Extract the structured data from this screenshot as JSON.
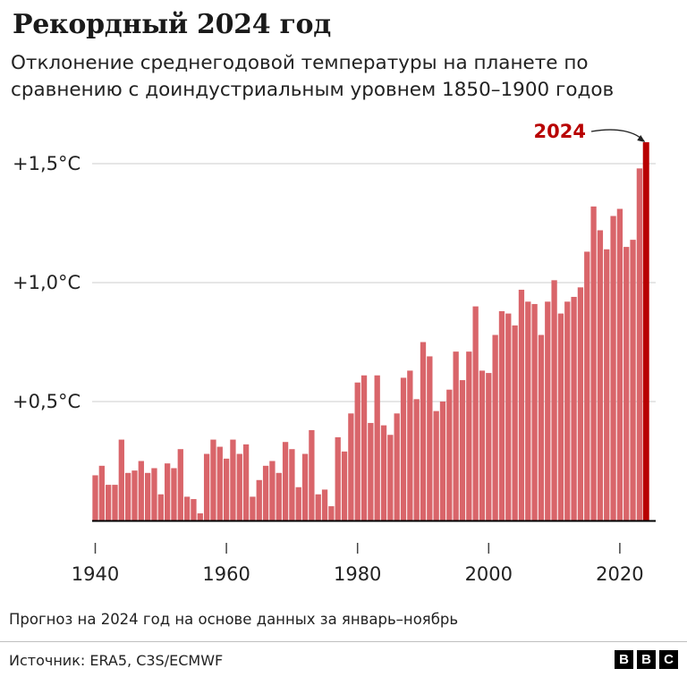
{
  "title": "Рекордный 2024 год",
  "subtitle": "Отклонение среднегодовой температуры на планете по сравнению с доиндустриальным уровнем 1850–1900 годов",
  "note": "Прогноз на 2024 год на основе данных за январь–ноябрь",
  "source": "Источник: ERA5, C3S/ECMWF",
  "logo": [
    "B",
    "B",
    "C"
  ],
  "colors": {
    "bar": "#d9656a",
    "highlight": "#b80000",
    "grid": "#cccccc",
    "axis": "#000000"
  },
  "chart_data": {
    "type": "bar",
    "title": "Рекордный 2024 год",
    "xlabel": "",
    "ylabel": "",
    "categories": [
      1940,
      1941,
      1942,
      1943,
      1944,
      1945,
      1946,
      1947,
      1948,
      1949,
      1950,
      1951,
      1952,
      1953,
      1954,
      1955,
      1956,
      1957,
      1958,
      1959,
      1960,
      1961,
      1962,
      1963,
      1964,
      1965,
      1966,
      1967,
      1968,
      1969,
      1970,
      1971,
      1972,
      1973,
      1974,
      1975,
      1976,
      1977,
      1978,
      1979,
      1980,
      1981,
      1982,
      1983,
      1984,
      1985,
      1986,
      1987,
      1988,
      1989,
      1990,
      1991,
      1992,
      1993,
      1994,
      1995,
      1996,
      1997,
      1998,
      1999,
      2000,
      2001,
      2002,
      2003,
      2004,
      2005,
      2006,
      2007,
      2008,
      2009,
      2010,
      2011,
      2012,
      2013,
      2014,
      2015,
      2016,
      2017,
      2018,
      2019,
      2020,
      2021,
      2022,
      2023,
      2024
    ],
    "values": [
      0.19,
      0.23,
      0.15,
      0.15,
      0.34,
      0.2,
      0.21,
      0.25,
      0.2,
      0.22,
      0.11,
      0.24,
      0.22,
      0.3,
      0.1,
      0.09,
      0.03,
      0.28,
      0.34,
      0.31,
      0.26,
      0.34,
      0.28,
      0.32,
      0.1,
      0.17,
      0.23,
      0.25,
      0.2,
      0.33,
      0.3,
      0.14,
      0.28,
      0.38,
      0.11,
      0.13,
      0.06,
      0.35,
      0.29,
      0.45,
      0.58,
      0.61,
      0.41,
      0.61,
      0.4,
      0.36,
      0.45,
      0.6,
      0.63,
      0.51,
      0.75,
      0.69,
      0.46,
      0.5,
      0.55,
      0.71,
      0.59,
      0.71,
      0.9,
      0.63,
      0.62,
      0.78,
      0.88,
      0.87,
      0.82,
      0.97,
      0.92,
      0.91,
      0.78,
      0.92,
      1.01,
      0.87,
      0.92,
      0.94,
      0.98,
      1.13,
      1.32,
      1.22,
      1.14,
      1.28,
      1.31,
      1.15,
      1.18,
      1.48,
      1.59
    ],
    "highlight": {
      "year": 2024,
      "label": "2024"
    },
    "yticks": [
      {
        "value": 0.5,
        "label": "+0,5°C"
      },
      {
        "value": 1.0,
        "label": "+1,0°C"
      },
      {
        "value": 1.5,
        "label": "+1,5°C"
      }
    ],
    "xticks": [
      1940,
      1960,
      1980,
      2000,
      2020
    ],
    "ylim": [
      0,
      1.6
    ],
    "grid": true
  }
}
